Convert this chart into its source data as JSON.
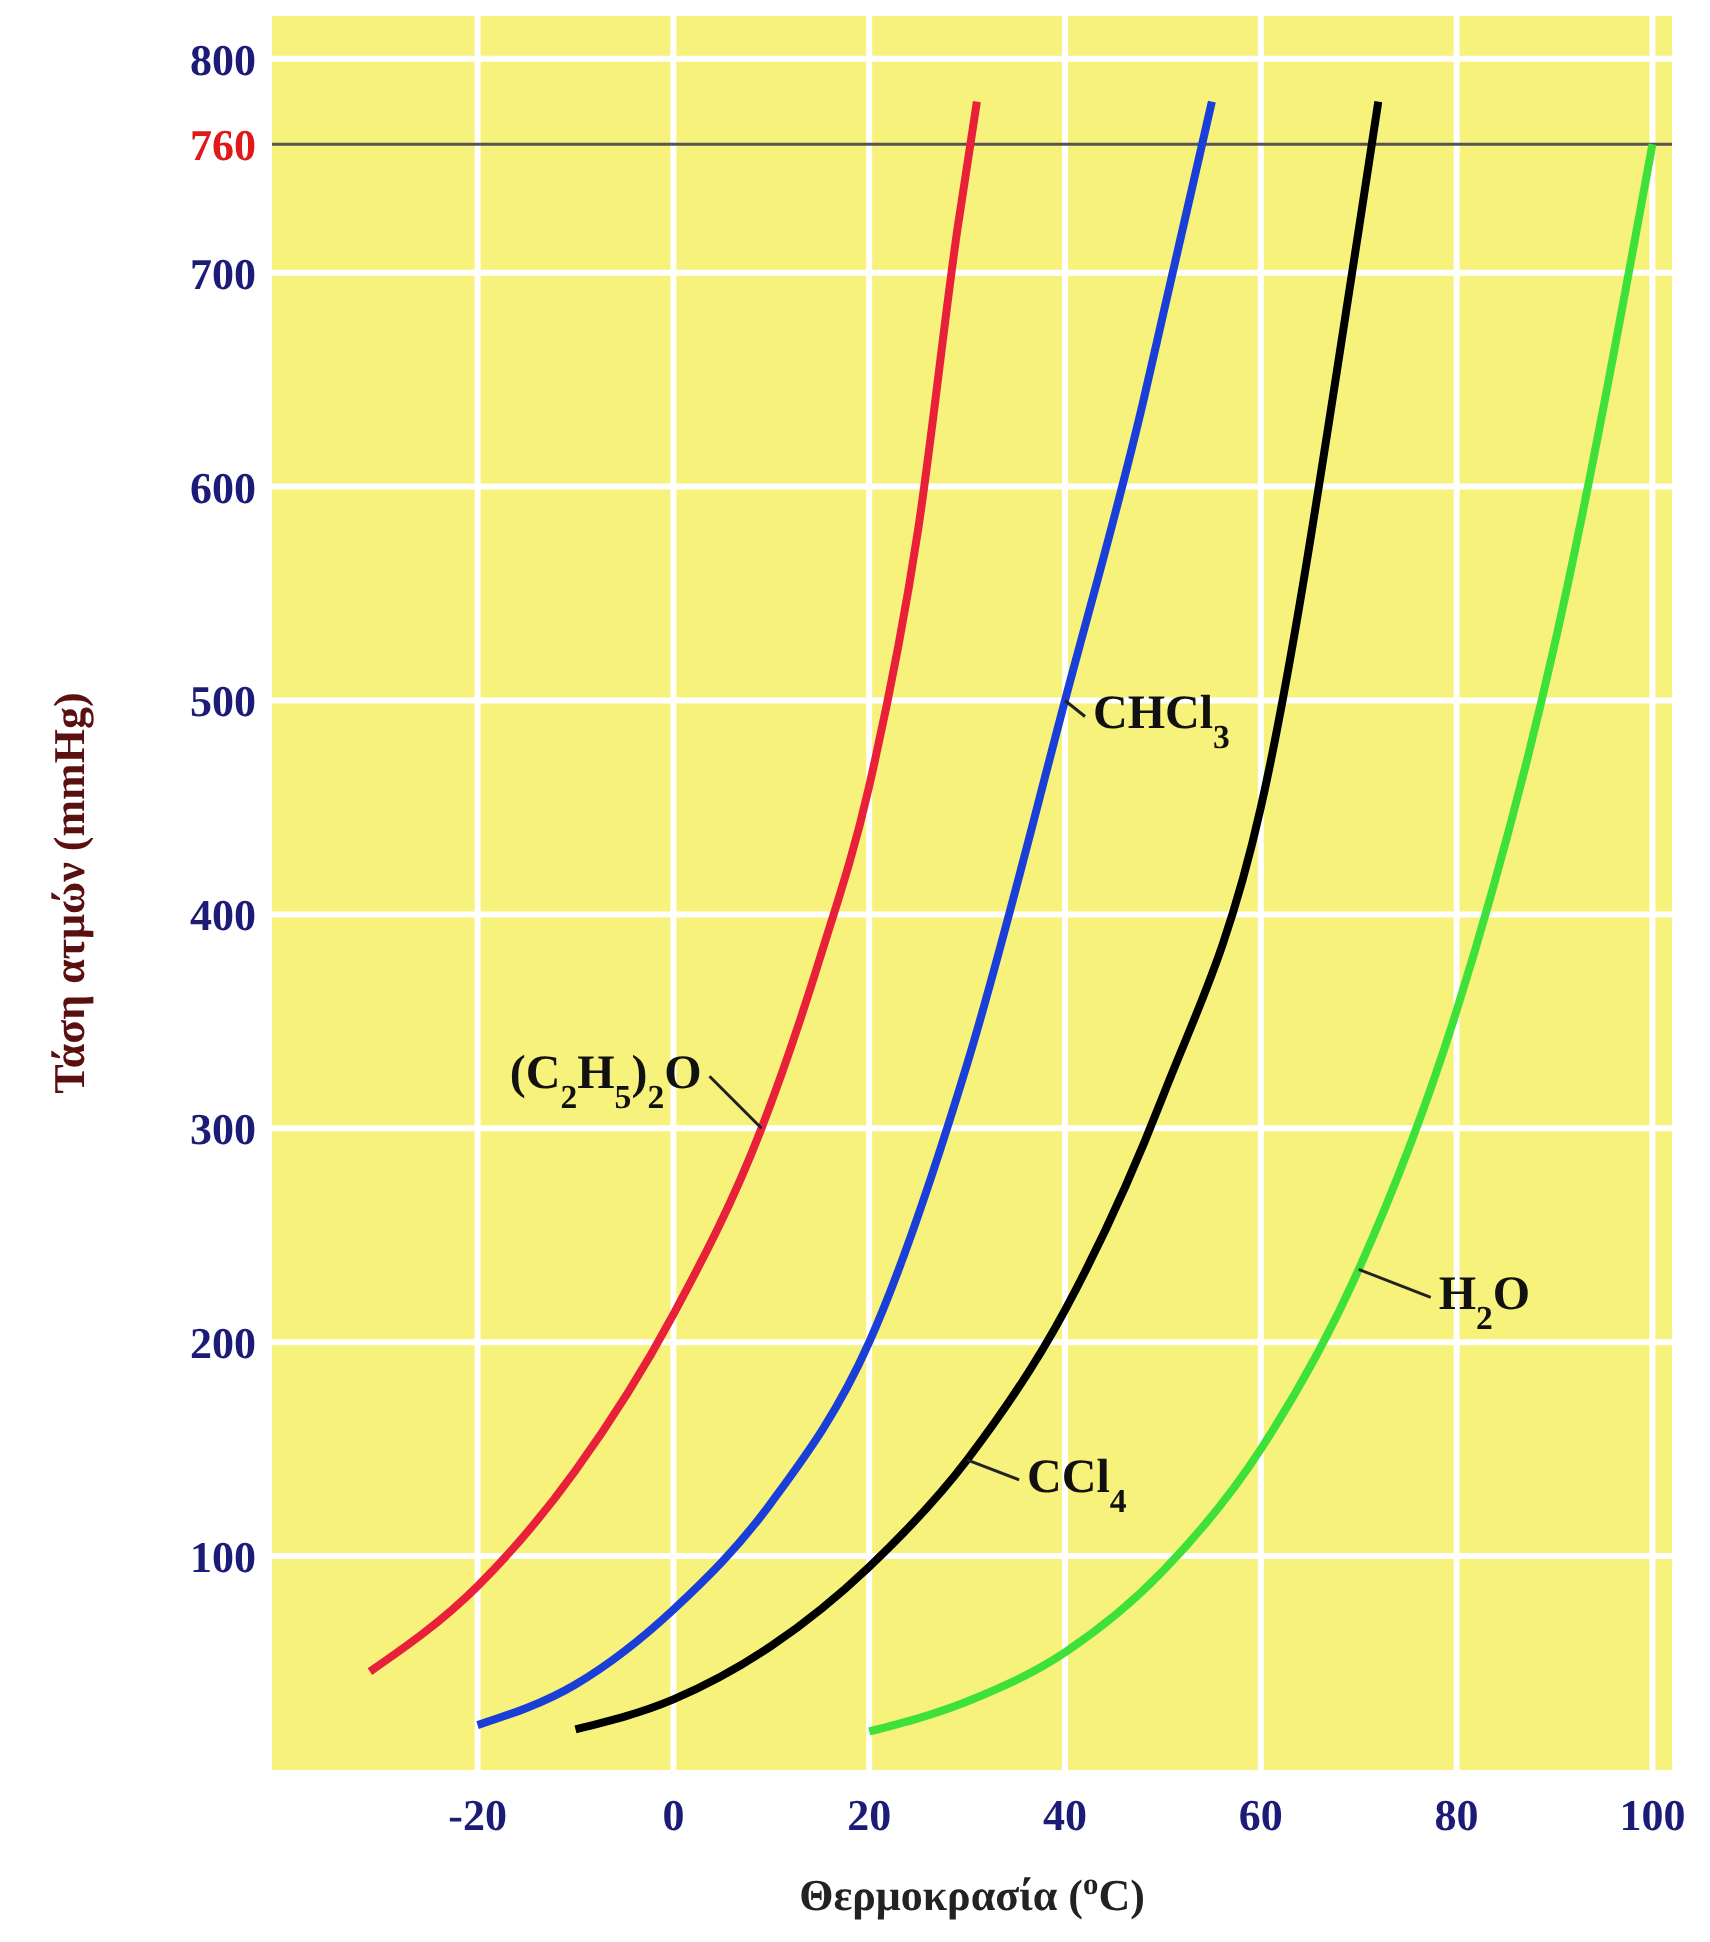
{
  "chart_data": {
    "type": "line",
    "xlabel": "Θερμοκρασία ($^{o}$C)",
    "ylabel": "Τάση ατμών (mmHg)",
    "xlim": [
      -41,
      102
    ],
    "ylim": [
      0,
      820
    ],
    "xticks": [
      -20,
      0,
      20,
      40,
      60,
      80,
      100
    ],
    "yticks": [
      100,
      200,
      300,
      400,
      500,
      600,
      700,
      760,
      800
    ],
    "grid": true,
    "marker": "none",
    "line_style": "solid",
    "ref_lines": [
      {
        "axis": "y",
        "value": 760,
        "color": "#555555"
      }
    ],
    "series": [
      {
        "name": "(C$_{2}$H$_{5}$)$_{2}$O",
        "color": "#e8203a",
        "x": [
          -31,
          -20,
          -10,
          0,
          9,
          15,
          20,
          25,
          29,
          31
        ],
        "values": [
          46,
          86,
          140,
          213,
          300,
          380,
          460,
          580,
          720,
          780
        ]
      },
      {
        "name": "CHCl$_{3}$",
        "color": "#1a3fd8",
        "x": [
          -20,
          -10,
          0,
          10,
          20,
          30,
          40,
          48,
          50,
          55
        ],
        "values": [
          21,
          40,
          75,
          125,
          200,
          330,
          500,
          640,
          680,
          780
        ]
      },
      {
        "name": "CCl$_{4}$",
        "color": "#000000",
        "x": [
          -10,
          0,
          10,
          20,
          30,
          40,
          50,
          60,
          70,
          72
        ],
        "values": [
          19,
          33,
          58,
          95,
          145,
          215,
          315,
          450,
          720,
          780
        ]
      },
      {
        "name": "H$_{2}$O",
        "color": "#3ee03a",
        "x": [
          20,
          30,
          40,
          50,
          60,
          70,
          80,
          90,
          100
        ],
        "values": [
          18,
          32,
          55,
          93,
          150,
          234,
          355,
          526,
          760
        ]
      }
    ]
  }
}
